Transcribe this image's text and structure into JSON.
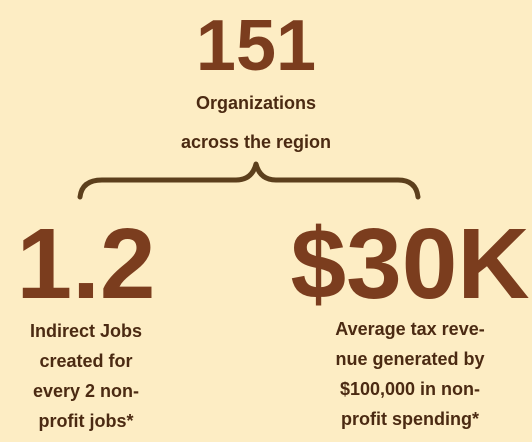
{
  "headline": {
    "value": "151",
    "lines": [
      "Organizations",
      "across the region"
    ]
  },
  "stats": [
    {
      "value": "1.2",
      "lines": [
        "Indirect Jobs",
        "created for",
        "every 2 non-",
        "profit jobs*"
      ]
    },
    {
      "value": "$30K",
      "lines": [
        "Average tax reve-",
        "nue generated by",
        "$100,000 in non-",
        "profit spending*"
      ]
    }
  ]
}
